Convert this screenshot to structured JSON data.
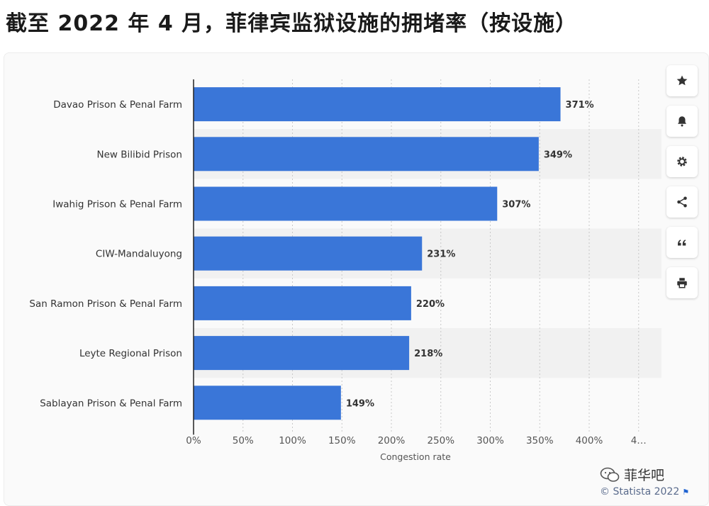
{
  "page": {
    "title": "截至 2022 年 4 月，菲律宾监狱设施的拥堵率（按设施）"
  },
  "chart_data": {
    "type": "bar",
    "orientation": "horizontal",
    "categories": [
      "Davao Prison & Penal Farm",
      "New Bilibid Prison",
      "Iwahig Prison & Penal Farm",
      "CIW-Mandaluyong",
      "San Ramon Prison & Penal Farm",
      "Leyte Regional Prison",
      "Sablayan Prison & Penal Farm"
    ],
    "values": [
      371,
      349,
      307,
      231,
      220,
      218,
      149
    ],
    "value_labels": [
      "371%",
      "349%",
      "307%",
      "231%",
      "220%",
      "218%",
      "149%"
    ],
    "x_ticks": [
      "0%",
      "50%",
      "100%",
      "150%",
      "200%",
      "250%",
      "300%",
      "350%",
      "400%",
      "4…"
    ],
    "xlabel": "Congestion rate",
    "xlim": [
      0,
      450
    ],
    "grid": true,
    "bar_color": "#3a76d8"
  },
  "toolbar": {
    "buttons": [
      {
        "name": "favorite",
        "icon": "star-icon"
      },
      {
        "name": "alert",
        "icon": "bell-icon"
      },
      {
        "name": "settings",
        "icon": "gear-icon"
      },
      {
        "name": "share",
        "icon": "share-icon"
      },
      {
        "name": "cite",
        "icon": "quote-icon"
      },
      {
        "name": "print",
        "icon": "print-icon"
      }
    ]
  },
  "footer": {
    "wechat_label": "菲华吧",
    "credit": "© Statista 2022",
    "icon": "wechat-icon"
  },
  "colors": {
    "bar": "#3a76d8",
    "band": "#f1f1f1",
    "icon": "#333333"
  }
}
